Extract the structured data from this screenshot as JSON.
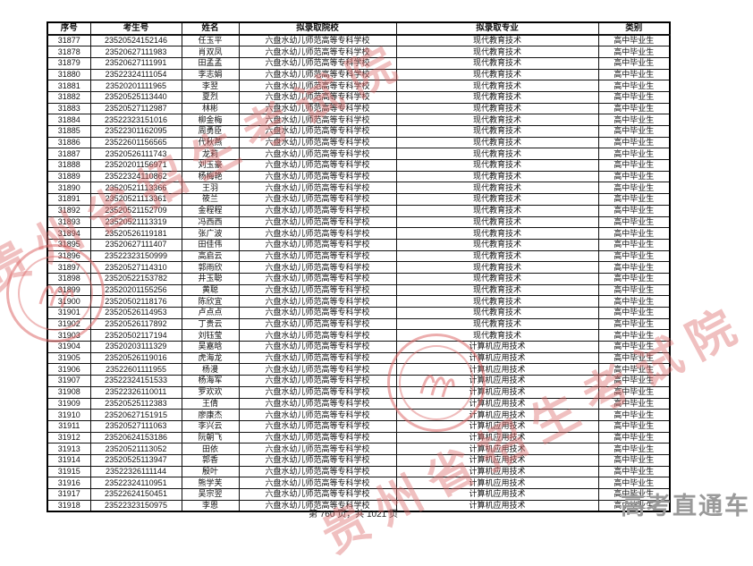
{
  "table": {
    "headers": [
      "序号",
      "考生号",
      "姓名",
      "拟录取院校",
      "拟录取专业",
      "类别"
    ],
    "rows": [
      [
        "31877",
        "23520524152146",
        "任玉平",
        "六盘水幼儿师范高等专科学校",
        "现代教育技术",
        "高中毕业生"
      ],
      [
        "31878",
        "23520627111983",
        "肖双凤",
        "六盘水幼儿师范高等专科学校",
        "现代教育技术",
        "高中毕业生"
      ],
      [
        "31879",
        "23520627111991",
        "田孟孟",
        "六盘水幼儿师范高等专科学校",
        "现代教育技术",
        "高中毕业生"
      ],
      [
        "31880",
        "23522324111054",
        "李志娟",
        "六盘水幼儿师范高等专科学校",
        "现代教育技术",
        "高中毕业生"
      ],
      [
        "31881",
        "23520201111965",
        "李翌",
        "六盘水幼儿师范高等专科学校",
        "现代教育技术",
        "高中毕业生"
      ],
      [
        "31882",
        "23520525113440",
        "夏烈",
        "六盘水幼儿师范高等专科学校",
        "现代教育技术",
        "高中毕业生"
      ],
      [
        "31883",
        "23520527112987",
        "林彬",
        "六盘水幼儿师范高等专科学校",
        "现代教育技术",
        "高中毕业生"
      ],
      [
        "31884",
        "23522323151016",
        "柳金梅",
        "六盘水幼儿师范高等专科学校",
        "现代教育技术",
        "高中毕业生"
      ],
      [
        "31885",
        "23522301162095",
        "周勇臣",
        "六盘水幼儿师范高等专科学校",
        "现代教育技术",
        "高中毕业生"
      ],
      [
        "31886",
        "23522601156565",
        "代秋燕",
        "六盘水幼儿师范高等专科学校",
        "现代教育技术",
        "高中毕业生"
      ],
      [
        "31887",
        "23520526111743",
        "龙莉",
        "六盘水幼儿师范高等专科学校",
        "现代教育技术",
        "高中毕业生"
      ],
      [
        "31888",
        "23520201156971",
        "刘玉豪",
        "六盘水幼儿师范高等专科学校",
        "现代教育技术",
        "高中毕业生"
      ],
      [
        "31889",
        "23522324110862",
        "杨梅艳",
        "六盘水幼儿师范高等专科学校",
        "现代教育技术",
        "高中毕业生"
      ],
      [
        "31890",
        "23520521113366",
        "王羽",
        "六盘水幼儿师范高等专科学校",
        "现代教育技术",
        "高中毕业生"
      ],
      [
        "31891",
        "23520521113361",
        "筱兰",
        "六盘水幼儿师范高等专科学校",
        "现代教育技术",
        "高中毕业生"
      ],
      [
        "31892",
        "23520521152709",
        "金程程",
        "六盘水幼儿师范高等专科学校",
        "现代教育技术",
        "高中毕业生"
      ],
      [
        "31893",
        "23520521113319",
        "冯西西",
        "六盘水幼儿师范高等专科学校",
        "现代教育技术",
        "高中毕业生"
      ],
      [
        "31894",
        "23520526119181",
        "张广波",
        "六盘水幼儿师范高等专科学校",
        "现代教育技术",
        "高中毕业生"
      ],
      [
        "31895",
        "23520627111407",
        "田佳伟",
        "六盘水幼儿师范高等专科学校",
        "现代教育技术",
        "高中毕业生"
      ],
      [
        "31896",
        "23522323150999",
        "高启云",
        "六盘水幼儿师范高等专科学校",
        "现代教育技术",
        "高中毕业生"
      ],
      [
        "31897",
        "23520527114310",
        "郭雨欣",
        "六盘水幼儿师范高等专科学校",
        "现代教育技术",
        "高中毕业生"
      ],
      [
        "31898",
        "23520522153782",
        "井玉聪",
        "六盘水幼儿师范高等专科学校",
        "现代教育技术",
        "高中毕业生"
      ],
      [
        "31899",
        "23520201155256",
        "黄聪",
        "六盘水幼儿师范高等专科学校",
        "现代教育技术",
        "高中毕业生"
      ],
      [
        "31900",
        "23520502118176",
        "陈欣宜",
        "六盘水幼儿师范高等专科学校",
        "现代教育技术",
        "高中毕业生"
      ],
      [
        "31901",
        "23520526114953",
        "卢点点",
        "六盘水幼儿师范高等专科学校",
        "现代教育技术",
        "高中毕业生"
      ],
      [
        "31902",
        "23520526117892",
        "丁贵云",
        "六盘水幼儿师范高等专科学校",
        "现代教育技术",
        "高中毕业生"
      ],
      [
        "31903",
        "23520502117194",
        "刘钰莹",
        "六盘水幼儿师范高等专科学校",
        "现代教育技术",
        "高中毕业生"
      ],
      [
        "31904",
        "23520203111329",
        "吴嘉晗",
        "六盘水幼儿师范高等专科学校",
        "计算机应用技术",
        "高中毕业生"
      ],
      [
        "31905",
        "23520526119016",
        "虎海龙",
        "六盘水幼儿师范高等专科学校",
        "计算机应用技术",
        "高中毕业生"
      ],
      [
        "31906",
        "23522601111955",
        "杨漫",
        "六盘水幼儿师范高等专科学校",
        "计算机应用技术",
        "高中毕业生"
      ],
      [
        "31907",
        "23522324151533",
        "杨海军",
        "六盘水幼儿师范高等专科学校",
        "计算机应用技术",
        "高中毕业生"
      ],
      [
        "31908",
        "23522326110011",
        "罗欢欢",
        "六盘水幼儿师范高等专科学校",
        "计算机应用技术",
        "高中毕业生"
      ],
      [
        "31909",
        "23520525112383",
        "王倩",
        "六盘水幼儿师范高等专科学校",
        "计算机应用技术",
        "高中毕业生"
      ],
      [
        "31910",
        "23520627151915",
        "廖康杰",
        "六盘水幼儿师范高等专科学校",
        "计算机应用技术",
        "高中毕业生"
      ],
      [
        "31911",
        "23520527111063",
        "李兴云",
        "六盘水幼儿师范高等专科学校",
        "计算机应用技术",
        "高中毕业生"
      ],
      [
        "31912",
        "23520624153186",
        "阮朝飞",
        "六盘水幼儿师范高等专科学校",
        "计算机应用技术",
        "高中毕业生"
      ],
      [
        "31913",
        "23520521113052",
        "田依",
        "六盘水幼儿师范高等专科学校",
        "计算机应用技术",
        "高中毕业生"
      ],
      [
        "31914",
        "23520525113947",
        "郭香",
        "六盘水幼儿师范高等专科学校",
        "计算机应用技术",
        "高中毕业生"
      ],
      [
        "31915",
        "23522326111144",
        "殷叶",
        "六盘水幼儿师范高等专科学校",
        "计算机应用技术",
        "高中毕业生"
      ],
      [
        "31916",
        "23522324110951",
        "熊学芙",
        "六盘水幼儿师范高等专科学校",
        "计算机应用技术",
        "高中毕业生"
      ],
      [
        "31917",
        "23522624150451",
        "吴宗翌",
        "六盘水幼儿师范高等专科学校",
        "计算机应用技术",
        "高中毕业生"
      ],
      [
        "31918",
        "23522323150975",
        "李恩",
        "六盘水幼儿师范高等专科学校",
        "计算机应用技术",
        "高中毕业生"
      ]
    ]
  },
  "footer": {
    "page_info": "第 760 页，共 1021 页"
  },
  "watermarks": {
    "diagonal_text": "贵州省招生考试院",
    "brand_text": "高考直通车",
    "seal_icon": "circular-seal-stamp",
    "red_color": "#dc6969",
    "gray_color": "#9a9a9a"
  }
}
